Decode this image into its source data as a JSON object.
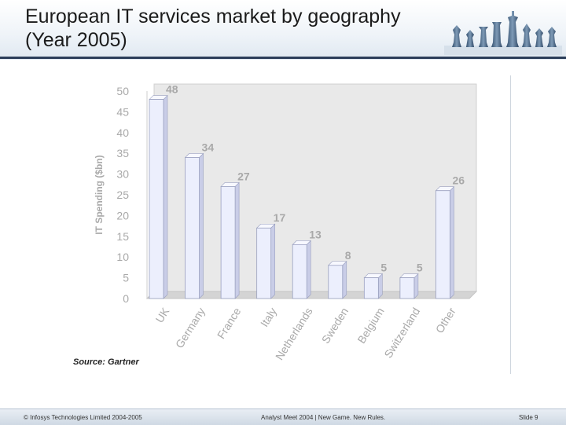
{
  "slide": {
    "title": "European IT services market by geography (Year 2005)",
    "source": "Source: Gartner",
    "footer": {
      "copyright": "© Infosys Technologies Limited 2004-2005",
      "event": "Analyst Meet 2004 | New Game. New Rules.",
      "slide_number": "Slide 9"
    }
  },
  "chart_data": {
    "type": "bar",
    "title": "European IT services market by geography (Year 2005)",
    "xlabel": "",
    "ylabel": "IT Spending ($bn)",
    "ylim": [
      0,
      50
    ],
    "yticks": [
      0,
      5,
      10,
      15,
      20,
      25,
      30,
      35,
      40,
      45,
      50
    ],
    "categories": [
      "UK",
      "Germany",
      "France",
      "Italy",
      "Netherlands",
      "Sweden",
      "Belgium",
      "Switzerland",
      "Other"
    ],
    "values": [
      48,
      34,
      27,
      17,
      13,
      8,
      5,
      5,
      26
    ],
    "colors": {
      "bar_face": "#eceffd",
      "bar_side": "#c9cde7",
      "bar_top": "#f7f8ff",
      "bar_edge": "#9aa0bf",
      "label": "#a9a9a9",
      "wall": "#e9e9e9",
      "floor": "#d4d4d4"
    }
  }
}
